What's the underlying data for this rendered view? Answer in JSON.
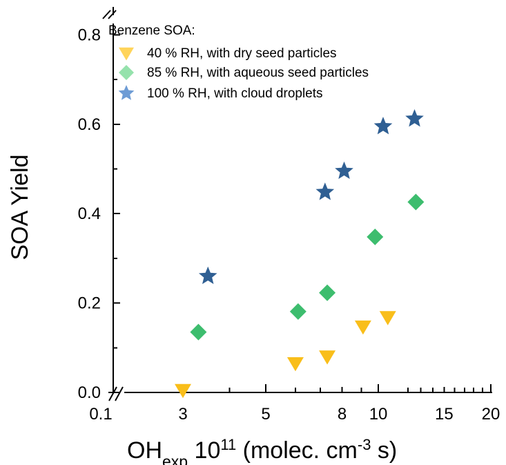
{
  "chart_data": {
    "type": "scatter",
    "legend_title": "Benzene SOA:",
    "legend_position": "top-left",
    "xlabel_main": "OH",
    "xlabel_sub": "exp",
    "xlabel_mid": " 10",
    "xlabel_sup": "11",
    "xlabel_rest": " (molec. cm",
    "xlabel_sup2": "-3",
    "xlabel_end": " s)",
    "ylabel": "SOA Yield",
    "x_scale": "log",
    "xlim": [
      0.1,
      20
    ],
    "ylim": [
      0.0,
      0.85
    ],
    "grid": false,
    "x_axis_break": true,
    "y_axis_break": true,
    "x_ticks": [
      0.1,
      3,
      5,
      8,
      10,
      15,
      20
    ],
    "x_tick_labels": [
      "0.1",
      "3",
      "5",
      "8",
      "10",
      "15",
      "20"
    ],
    "y_ticks": [
      0.0,
      0.2,
      0.4,
      0.6,
      0.8
    ],
    "y_tick_labels": [
      "0.0",
      "0.2",
      "0.4",
      "0.6",
      "0.8"
    ],
    "series": [
      {
        "name": "40 % RH, with dry seed particles",
        "marker": "triangle-down",
        "color": "#F9BE1A",
        "x": [
          3.0,
          6.0,
          7.3,
          9.1,
          10.6
        ],
        "y": [
          0.005,
          0.065,
          0.08,
          0.147,
          0.168
        ]
      },
      {
        "name": "85 % RH, with aqueous seed particles",
        "marker": "diamond",
        "color": "#3DBD6E",
        "x": [
          3.3,
          6.1,
          7.3,
          9.8,
          12.6
        ],
        "y": [
          0.135,
          0.181,
          0.223,
          0.348,
          0.426
        ]
      },
      {
        "name": "100 % RH, with cloud droplets",
        "marker": "star",
        "color": "#2F5F93",
        "x": [
          3.5,
          7.2,
          8.1,
          10.3,
          12.5
        ],
        "y": [
          0.26,
          0.448,
          0.495,
          0.595,
          0.612
        ]
      }
    ]
  }
}
